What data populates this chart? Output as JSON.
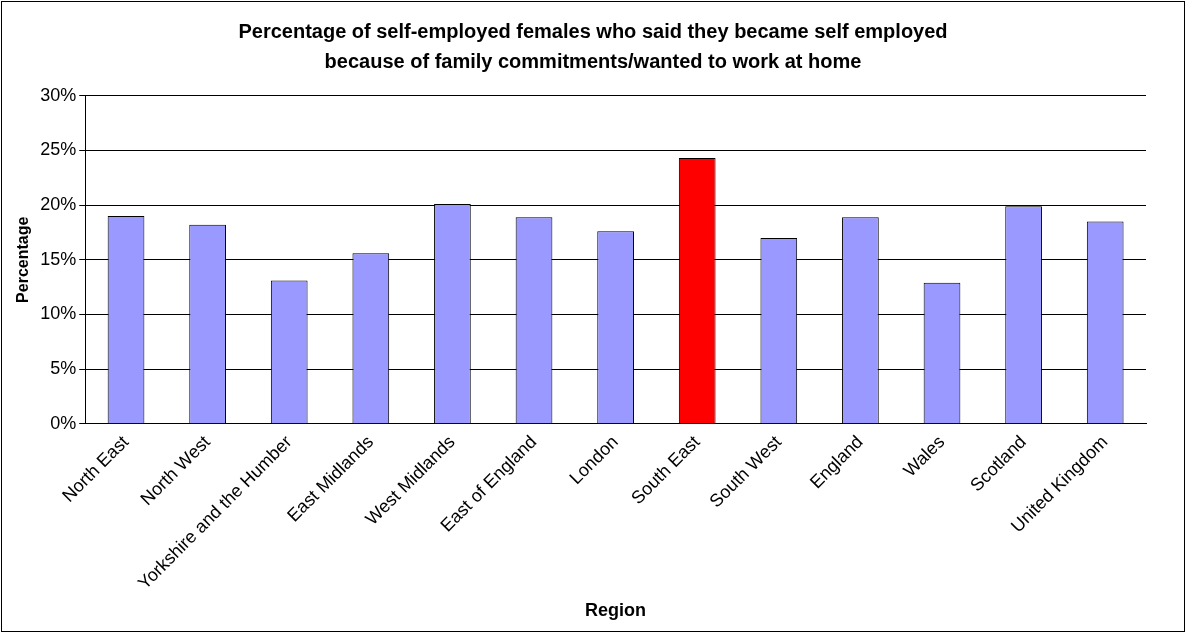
{
  "chart_data": {
    "type": "bar",
    "title": "Percentage of self-employed females who said they became self employed because of family commitments/wanted to work at home",
    "xlabel": "Region",
    "ylabel": "Percentage",
    "categories": [
      "North East",
      "North West",
      "Yorkshire and the Humber",
      "East Midlands",
      "West Midlands",
      "East of England",
      "London",
      "South East",
      "South West",
      "England",
      "Wales",
      "Scotland",
      "United Kingdom"
    ],
    "values": [
      19.0,
      18.2,
      13.1,
      15.6,
      20.1,
      18.9,
      17.6,
      24.3,
      17.0,
      18.9,
      12.9,
      19.9,
      18.5
    ],
    "colors": [
      "#9999ff",
      "#9999ff",
      "#9999ff",
      "#9999ff",
      "#9999ff",
      "#9999ff",
      "#9999ff",
      "#ff0000",
      "#9999ff",
      "#9999ff",
      "#9999ff",
      "#9999ff",
      "#9999ff"
    ],
    "ylim": [
      0,
      30
    ],
    "yticks": [
      {
        "value": 0,
        "label": "0%"
      },
      {
        "value": 5,
        "label": "5%"
      },
      {
        "value": 10,
        "label": "10%"
      },
      {
        "value": 15,
        "label": "15%"
      },
      {
        "value": 20,
        "label": "20%"
      },
      {
        "value": 25,
        "label": "25%"
      },
      {
        "value": 30,
        "label": "30%"
      }
    ],
    "grid": "y",
    "legend": false
  }
}
